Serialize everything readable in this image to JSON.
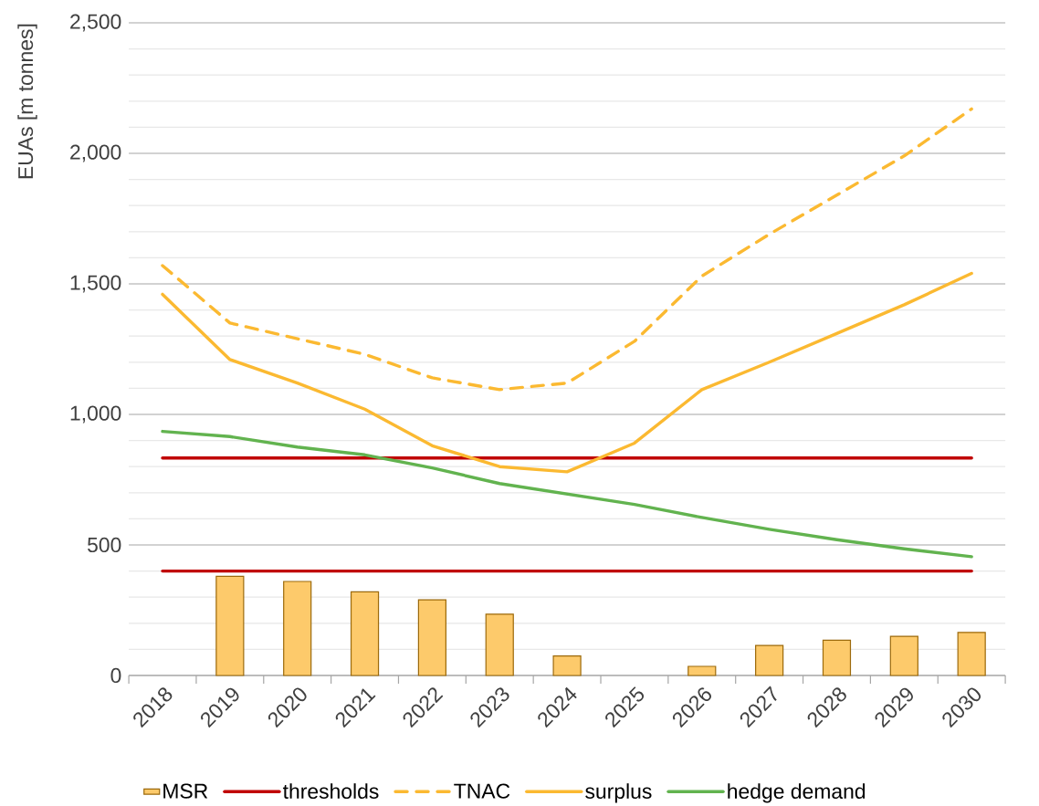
{
  "chart_data": {
    "type": "line",
    "ylabel": "EUAs [m tonnes]",
    "categories": [
      "2018",
      "2019",
      "2020",
      "2021",
      "2022",
      "2023",
      "2024",
      "2025",
      "2026",
      "2027",
      "2028",
      "2029",
      "2030"
    ],
    "series": [
      {
        "name": "MSR",
        "type": "bar",
        "color": "#fdca6b",
        "values": [
          null,
          380,
          360,
          320,
          290,
          235,
          75,
          null,
          35,
          115,
          135,
          150,
          165
        ]
      },
      {
        "name": "thresholds",
        "color": "#c00000",
        "values": [
          833,
          833,
          833,
          833,
          833,
          833,
          833,
          833,
          833,
          833,
          833,
          833,
          833
        ]
      },
      {
        "name": "TNAC",
        "color": "#fbb931",
        "line_style": "dashed",
        "values": [
          1570,
          1350,
          1290,
          1230,
          1140,
          1095,
          1120,
          1280,
          1530,
          1690,
          1840,
          1990,
          2170
        ]
      },
      {
        "name": "surplus",
        "color": "#fbb931",
        "values": [
          1460,
          1210,
          1120,
          1020,
          880,
          800,
          780,
          890,
          1095,
          1200,
          1310,
          1420,
          1540
        ]
      },
      {
        "name": "hedge demand",
        "color": "#62b34f",
        "values": [
          935,
          915,
          875,
          845,
          795,
          735,
          695,
          655,
          605,
          560,
          520,
          485,
          455
        ]
      },
      {
        "color": "#c00000",
        "values": [
          400,
          400,
          400,
          400,
          400,
          400,
          400,
          400,
          400,
          400,
          400,
          400,
          400
        ]
      }
    ],
    "ylim": [
      0,
      2500
    ],
    "yticks": [
      {
        "value": 0,
        "label": "0"
      },
      {
        "value": 500,
        "label": "500"
      },
      {
        "value": 1000,
        "label": "1,000"
      },
      {
        "value": 1500,
        "label": "1,500"
      },
      {
        "value": 2000,
        "label": "2,000"
      },
      {
        "value": 2500,
        "label": "2,500"
      }
    ],
    "grid": "y",
    "legend": "bottom",
    "marker": "none"
  }
}
